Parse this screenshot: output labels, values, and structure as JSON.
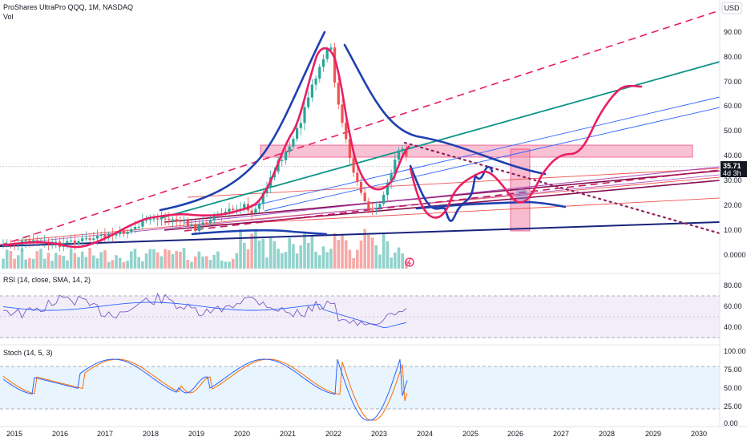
{
  "header": {
    "symbol_line": "ProShares UltraPro QQQ, 1M, NASDAQ",
    "vol_label": "Vol",
    "currency_button": "USD"
  },
  "price_scale": {
    "ticks": [
      "90.00",
      "80.00",
      "70.00",
      "60.00",
      "50.00",
      "40.00",
      "30.00",
      "20.00",
      "10.00",
      "0.0000"
    ],
    "last_price": "35.71",
    "last_price_countdown": "4d 3h",
    "last_price_color": "#131722"
  },
  "rsi_pane": {
    "legend": "RSI (14, close, SMA, 14, 2)",
    "ticks": [
      "80.00",
      "60.00",
      "40.00"
    ],
    "bg_color": "#7e57c2",
    "line_color": "#7e57c2",
    "sma_color": "#2962ff"
  },
  "stoch_pane": {
    "legend": "Stoch (14, 5, 3)",
    "ticks": [
      "100.00",
      "75.00",
      "50.00",
      "25.00",
      "0.00"
    ],
    "k_color": "#2962ff",
    "d_color": "#ff6d00",
    "bg_color": "#2196f3"
  },
  "time_axis": {
    "labels": [
      "2015",
      "2016",
      "2017",
      "2018",
      "2019",
      "2020",
      "2021",
      "2022",
      "2023",
      "2024",
      "2025",
      "2026",
      "2027",
      "2028",
      "2029",
      "2030"
    ]
  },
  "colors": {
    "up_candle": "#26a69a",
    "down_candle": "#ef5350",
    "annotation_red": "#e91e63",
    "annotation_blue": "#1e40af",
    "trend_teal": "#0e9488",
    "resistance_zone": "#f48fb1",
    "pane_border": "#e0e3eb"
  },
  "icons": {
    "alert_icon": "clock-bolt-icon"
  }
}
